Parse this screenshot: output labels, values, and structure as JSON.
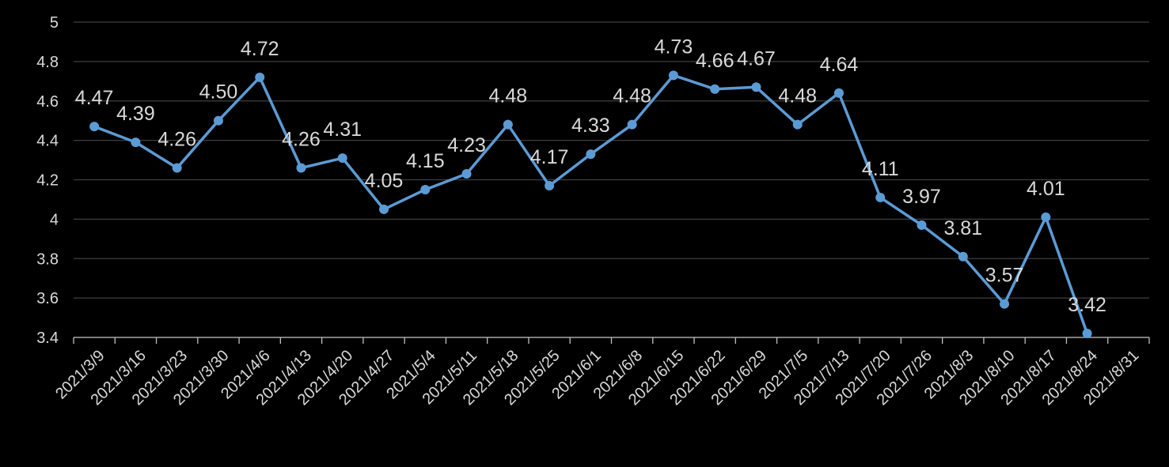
{
  "chart_data": {
    "type": "line",
    "categories": [
      "2021/3/9",
      "2021/3/16",
      "2021/3/23",
      "2021/3/30",
      "2021/4/6",
      "2021/4/13",
      "2021/4/20",
      "2021/4/27",
      "2021/5/4",
      "2021/5/11",
      "2021/5/18",
      "2021/5/25",
      "2021/6/1",
      "2021/6/8",
      "2021/6/15",
      "2021/6/22",
      "2021/6/29",
      "2021/7/5",
      "2021/7/13",
      "2021/7/20",
      "2021/7/26",
      "2021/8/3",
      "2021/8/10",
      "2021/8/17",
      "2021/8/24",
      "2021/8/31"
    ],
    "values": [
      4.47,
      4.39,
      4.26,
      4.5,
      4.72,
      4.26,
      4.31,
      4.05,
      4.15,
      4.23,
      4.48,
      4.17,
      4.33,
      4.48,
      4.73,
      4.66,
      4.67,
      4.48,
      4.64,
      4.11,
      3.97,
      3.81,
      3.57,
      4.01,
      3.42,
      null
    ],
    "value_labels": [
      "4.47",
      "4.39",
      "4.26",
      "4.50",
      "4.72",
      "4.26",
      "4.31",
      "4.05",
      "4.15",
      "4.23",
      "4.48",
      "4.17",
      "4.33",
      "4.48",
      "4.73",
      "4.66",
      "4.67",
      "4.48",
      "4.64",
      "4.11",
      "3.97",
      "3.81",
      "3.57",
      "4.01",
      "3.42",
      null
    ],
    "color": "#5b9bd5",
    "ylim": [
      3.4,
      5
    ],
    "yticks": [
      3.4,
      3.6,
      3.8,
      4,
      4.2,
      4.4,
      4.6,
      4.8,
      5
    ],
    "grid": true
  }
}
